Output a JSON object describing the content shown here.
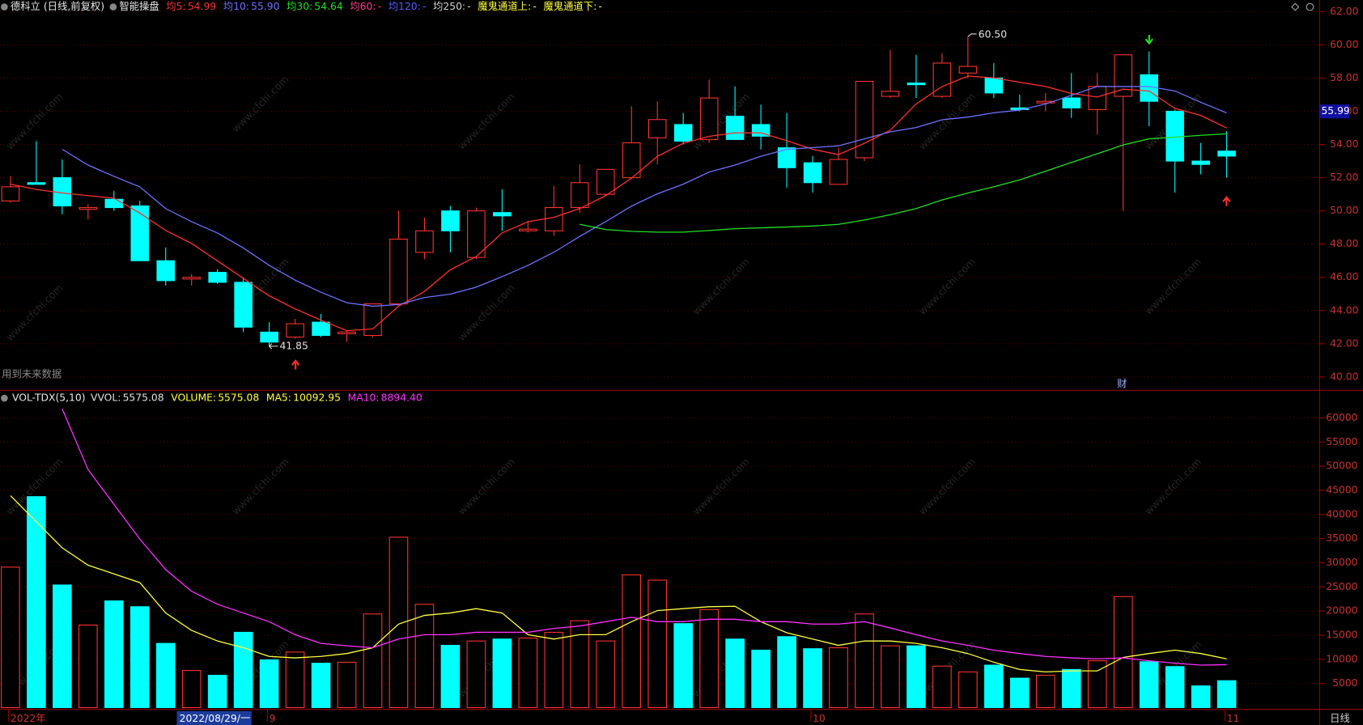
{
  "chart_data": [
    {
      "type": "candlestick",
      "title": "德科立 (日线,前复权)",
      "subtitle": "智能操盘",
      "categories": [
        "2022年",
        null,
        null,
        null,
        null,
        null,
        null,
        "2022/08/29/一",
        null,
        null,
        "9",
        null,
        null,
        null,
        null,
        null,
        null,
        null,
        null,
        null,
        null,
        null,
        null,
        null,
        null,
        null,
        null,
        null,
        null,
        null,
        null,
        "10",
        null,
        null,
        null,
        null,
        null,
        null,
        null,
        null,
        null,
        null,
        null,
        null,
        null,
        null,
        null,
        "11"
      ],
      "open": [
        50.6,
        51.7,
        52.0,
        50.1,
        50.7,
        50.3,
        47.0,
        45.9,
        46.3,
        45.7,
        42.7,
        42.4,
        43.3,
        42.6,
        42.5,
        44.4,
        47.5,
        50.0,
        47.2,
        49.9,
        48.8,
        48.8,
        50.2,
        51.0,
        52.0,
        54.4,
        55.2,
        54.3,
        55.7,
        55.2,
        53.8,
        52.9,
        51.6,
        53.2,
        56.9,
        57.7,
        56.9,
        58.3,
        58.0,
        56.2,
        56.5,
        56.8,
        56.1,
        56.9,
        58.2,
        56.0,
        53.0,
        53.6
      ],
      "close": [
        51.45,
        51.6,
        50.3,
        50.2,
        50.2,
        47.0,
        45.8,
        46.0,
        45.7,
        43.0,
        42.1,
        43.2,
        42.5,
        42.7,
        44.4,
        48.3,
        48.8,
        48.8,
        50.0,
        49.7,
        48.9,
        50.2,
        51.7,
        52.5,
        54.1,
        55.5,
        54.2,
        56.8,
        54.3,
        54.5,
        52.6,
        51.7,
        53.1,
        57.8,
        57.2,
        57.6,
        58.9,
        58.7,
        57.1,
        56.1,
        56.6,
        56.2,
        57.5,
        59.4,
        56.6,
        53.0,
        52.8,
        53.3
      ],
      "high": [
        52.1,
        54.2,
        53.1,
        50.4,
        51.2,
        50.6,
        47.8,
        46.2,
        46.5,
        46.0,
        43.3,
        43.5,
        43.8,
        42.8,
        44.4,
        50.0,
        49.6,
        50.3,
        50.2,
        51.3,
        49.4,
        51.5,
        52.8,
        52.5,
        56.3,
        56.6,
        55.9,
        57.9,
        57.5,
        56.4,
        55.9,
        53.3,
        53.8,
        57.8,
        59.7,
        59.4,
        59.5,
        60.5,
        58.9,
        57.0,
        57.1,
        58.3,
        58.3,
        59.4,
        59.6,
        56.1,
        54.1,
        54.8
      ],
      "low": [
        50.5,
        51.6,
        49.8,
        49.5,
        50.0,
        47.0,
        45.5,
        45.5,
        45.6,
        42.7,
        41.85,
        42.3,
        42.4,
        42.1,
        42.4,
        44.3,
        47.1,
        47.5,
        47.1,
        48.8,
        48.7,
        48.5,
        49.9,
        50.9,
        52.0,
        52.8,
        54.0,
        54.1,
        54.3,
        53.7,
        51.4,
        51.1,
        51.6,
        53.0,
        56.8,
        56.8,
        56.8,
        58.0,
        56.8,
        56.0,
        56.0,
        55.6,
        54.6,
        50.0,
        55.1,
        51.1,
        52.2,
        52.0
      ],
      "up_color": "#ff3232",
      "down_color": "#00ffff",
      "series": [
        {
          "name": "均5:",
          "label": "54.99",
          "color": "#ff3030",
          "values": [
            51.61,
            51.29,
            51.08,
            50.92,
            50.77,
            49.87,
            48.82,
            48.04,
            46.99,
            45.94,
            44.89,
            44.1,
            43.42,
            42.79,
            42.89,
            44.26,
            45.15,
            46.46,
            47.25,
            48.67,
            49.35,
            49.61,
            50.14,
            50.92,
            51.97,
            53.29,
            54.07,
            54.49,
            54.7,
            54.7,
            54.23,
            53.71,
            53.39,
            54.07,
            54.86,
            56.44,
            57.49,
            58.12,
            58.01,
            57.75,
            57.49,
            57.07,
            56.86,
            57.33,
            57.22,
            56.17,
            55.75,
            54.99
          ]
        },
        {
          "name": "均10:",
          "label": "55.90",
          "color": "#7070ff",
          "values": [
            null,
            null,
            53.71,
            52.76,
            52.08,
            51.45,
            50.14,
            49.35,
            48.67,
            47.77,
            46.72,
            45.83,
            45.1,
            44.47,
            44.26,
            44.36,
            44.78,
            44.99,
            45.41,
            46.04,
            46.72,
            47.51,
            48.46,
            49.35,
            50.29,
            51.03,
            51.61,
            52.34,
            52.76,
            53.29,
            53.71,
            53.81,
            53.92,
            54.34,
            54.76,
            55.02,
            55.49,
            55.65,
            55.91,
            56.07,
            56.44,
            56.96,
            57.49,
            57.49,
            57.49,
            57.22,
            56.54,
            55.9
          ]
        },
        {
          "name": "均30:",
          "label": "54.64",
          "color": "#22e022",
          "values": [
            null,
            null,
            null,
            null,
            null,
            null,
            null,
            null,
            null,
            null,
            null,
            null,
            null,
            null,
            null,
            null,
            null,
            null,
            null,
            null,
            null,
            null,
            49.19,
            48.88,
            48.77,
            48.72,
            48.72,
            48.82,
            48.93,
            48.98,
            49.03,
            49.09,
            49.19,
            49.45,
            49.77,
            50.14,
            50.66,
            51.08,
            51.45,
            51.87,
            52.39,
            52.92,
            53.44,
            53.97,
            54.34,
            54.44,
            54.55,
            54.64
          ]
        }
      ],
      "legend_extra": [
        {
          "name": "均60:",
          "label": "-",
          "color": "#ff3c8c"
        },
        {
          "name": "均120:",
          "label": "-",
          "color": "#5a5aff"
        },
        {
          "name": "均250:",
          "label": "-",
          "color": "#d0d0d0"
        },
        {
          "name": "魔鬼通道上:",
          "label": "-",
          "color": "#ffff40"
        },
        {
          "name": "魔鬼通道下:",
          "label": "-",
          "color": "#ffff40"
        }
      ],
      "ylim": [
        39.3,
        62.7
      ],
      "yticks": [
        {
          "value": 40,
          "label": "40.00"
        },
        {
          "value": 42,
          "label": "42.00"
        },
        {
          "value": 44,
          "label": "44.00"
        },
        {
          "value": 46,
          "label": "46.00"
        },
        {
          "value": 48,
          "label": "48.00"
        },
        {
          "value": 50,
          "label": "50.00"
        },
        {
          "value": 52,
          "label": "52.00"
        },
        {
          "value": 54,
          "label": "54.00"
        },
        {
          "value": 56,
          "label": "56.00"
        },
        {
          "value": 58,
          "label": "58.00"
        },
        {
          "value": 60,
          "label": "60.00"
        },
        {
          "value": 62,
          "label": "62.00"
        }
      ],
      "grid": true,
      "high_label": "60.50",
      "low_label": "41.85",
      "axis_marker": 55.99,
      "note": "用到未来数据",
      "event": "财",
      "period": "日线",
      "watermark": "www.cfchi.com"
    },
    {
      "type": "bar",
      "title": "VOL-TDX(5,10)",
      "legend_extra": [
        {
          "name": "VVOL:",
          "label": "5575.08",
          "color": "#e0e0e0"
        }
      ],
      "values": [
        29100,
        43700,
        25400,
        17100,
        22100,
        20900,
        13300,
        7700,
        6700,
        15600,
        9900,
        11500,
        9200,
        9400,
        19400,
        35300,
        21400,
        12900,
        13800,
        14200,
        14400,
        15600,
        18000,
        13800,
        27500,
        26400,
        17400,
        20300,
        14200,
        11900,
        14700,
        12200,
        12400,
        19400,
        12800,
        12800,
        8600,
        7400,
        8800,
        6100,
        6700,
        7900,
        9700,
        23000,
        9500,
        8500,
        4500,
        5575.08
      ],
      "name": "VOLUME:",
      "label": "5575.08",
      "color": "#ffff40",
      "series": [
        {
          "name": "MA5:",
          "label": "10092.95",
          "color": "#ffff40",
          "values": [
            43900,
            38500,
            33100,
            29500,
            27700,
            25900,
            19600,
            16000,
            13800,
            12400,
            10600,
            10300,
            10600,
            11200,
            12400,
            17300,
            19100,
            19600,
            20500,
            19600,
            15100,
            14200,
            15100,
            15100,
            17800,
            20100,
            20500,
            20900,
            21000,
            17800,
            15500,
            14200,
            12900,
            13800,
            13800,
            13300,
            12400,
            11200,
            9400,
            7900,
            7400,
            7600,
            7600,
            10400,
            11200,
            11900,
            11200,
            10092.95
          ]
        },
        {
          "name": "MA10:",
          "label": "8894.40",
          "color": "#ff30ff",
          "values": [
            null,
            null,
            61900,
            49300,
            42100,
            34900,
            28600,
            24100,
            21400,
            19600,
            17800,
            15100,
            13300,
            12800,
            12400,
            14200,
            15100,
            15100,
            15600,
            15600,
            15600,
            16400,
            16900,
            17800,
            18700,
            17800,
            17800,
            18300,
            18300,
            17800,
            17800,
            17300,
            17300,
            17800,
            16500,
            15100,
            13800,
            12900,
            11900,
            11200,
            10600,
            10300,
            10100,
            10300,
            9700,
            9200,
            8800,
            8894.4
          ]
        }
      ],
      "ylim": [
        0,
        65000
      ],
      "yticks": [
        5000,
        10000,
        15000,
        20000,
        25000,
        30000,
        35000,
        40000,
        45000,
        50000,
        55000,
        60000
      ],
      "grid": true
    }
  ]
}
